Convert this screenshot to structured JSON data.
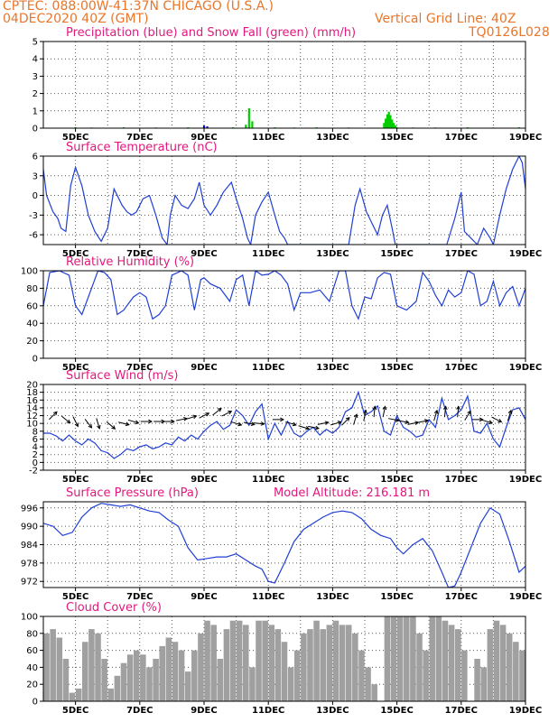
{
  "header": {
    "station": "CPTEC:   088:00W-41:37N   CHICAGO (U.S.A.)",
    "init": "04DEC2020 40Z (GMT)",
    "grid_note": "Vertical Grid Line: 40Z",
    "code": "TQ0126L028"
  },
  "colors": {
    "header": "#e8762c",
    "panel_title": "#e0197d",
    "precip": "#0000cc",
    "snow": "#00cc00",
    "line": "#1f3fd6",
    "bars": "#a0a0a0",
    "arrow": "#000000"
  },
  "x_ticks": [
    "5DEC",
    "7DEC",
    "9DEC",
    "11DEC",
    "13DEC",
    "15DEC",
    "17DEC",
    "19DEC"
  ],
  "chart_data": [
    {
      "id": "precip",
      "type": "bar",
      "title": "Precipitation (blue) and Snow Fall (green) (mm/h)",
      "xlim": [
        4.0,
        19.0
      ],
      "ylim": [
        0,
        5
      ],
      "yticks": [
        0,
        1,
        2,
        3,
        4,
        5
      ],
      "grid": true,
      "series": [
        {
          "name": "Precipitation",
          "color": "precip",
          "x": [
            9.0,
            9.1,
            14.8
          ],
          "values": [
            0.15,
            0.1,
            0.3
          ]
        },
        {
          "name": "Snow Fall",
          "color": "snow",
          "x": [
            5.0,
            5.5,
            6.5,
            7.5,
            8.5,
            9.9,
            10.3,
            10.4,
            10.5,
            11.2,
            11.8,
            12.5,
            13.5,
            14.6,
            14.65,
            14.7,
            14.75,
            14.8,
            14.85,
            14.9,
            14.95,
            15.0,
            15.5,
            16.2,
            17.2,
            18.0,
            18.8
          ],
          "values": [
            0.05,
            0.04,
            0.05,
            0.04,
            0.05,
            0.05,
            0.2,
            1.15,
            0.4,
            0.05,
            0.04,
            0.05,
            0.04,
            0.3,
            0.55,
            0.8,
            0.95,
            0.75,
            0.5,
            0.3,
            0.15,
            0.05,
            0.04,
            0.04,
            0.05,
            0.04,
            0.05
          ]
        }
      ]
    },
    {
      "id": "temperature",
      "type": "line",
      "title": "Surface Temperature (nC)",
      "xlim": [
        4.0,
        19.0
      ],
      "ylim": [
        -7.5,
        6
      ],
      "yticks": [
        -6,
        -3,
        0,
        3,
        6
      ],
      "grid": true,
      "series": [
        {
          "name": "Temperature",
          "x": [
            4.0,
            4.1,
            4.3,
            4.45,
            4.55,
            4.7,
            4.85,
            5.0,
            5.2,
            5.4,
            5.6,
            5.8,
            6.0,
            6.2,
            6.45,
            6.6,
            6.75,
            6.9,
            7.1,
            7.3,
            7.5,
            7.7,
            7.85,
            7.95,
            8.1,
            8.3,
            8.5,
            8.7,
            8.85,
            9.0,
            9.2,
            9.4,
            9.6,
            9.85,
            10.0,
            10.2,
            10.35,
            10.45,
            10.6,
            10.8,
            11.0,
            11.2,
            11.35,
            11.5,
            11.6,
            13.5,
            13.7,
            13.85,
            14.05,
            14.2,
            14.4,
            14.55,
            14.7,
            14.85,
            14.95,
            16.55,
            16.8,
            17.0,
            17.1,
            17.2,
            17.5,
            17.7,
            17.9,
            18.0,
            18.2,
            18.4,
            18.6,
            18.8,
            18.9,
            19.0
          ],
          "values": [
            4.0,
            0.0,
            -2.5,
            -3.5,
            -5.0,
            -5.5,
            1.5,
            4.3,
            1.5,
            -3.0,
            -5.5,
            -7.0,
            -5.0,
            1.0,
            -1.5,
            -2.5,
            -3.0,
            -2.5,
            -0.5,
            0.0,
            -3.0,
            -6.5,
            -7.5,
            -3.0,
            0.0,
            -1.5,
            -2.0,
            -0.5,
            2.0,
            -1.5,
            -3.0,
            -1.5,
            0.5,
            2.0,
            -0.5,
            -3.5,
            -6.5,
            -7.5,
            -3.0,
            -1.0,
            0.5,
            -3.0,
            -5.5,
            -6.5,
            -7.5,
            -7.5,
            -1.5,
            1.0,
            -2.5,
            -4.0,
            -6.0,
            -3.0,
            -1.5,
            -5.0,
            -7.5,
            -7.5,
            -3.5,
            0.5,
            -5.5,
            -6.0,
            -7.5,
            -5.0,
            -6.5,
            -7.5,
            -3.0,
            1.0,
            4.0,
            6.0,
            5.0,
            1.0
          ]
        }
      ]
    },
    {
      "id": "humidity",
      "type": "line",
      "title": "Relative Humidity (%)",
      "xlim": [
        4.0,
        19.0
      ],
      "ylim": [
        0,
        100
      ],
      "yticks": [
        0,
        20,
        40,
        60,
        80,
        100
      ],
      "grid": true,
      "series": [
        {
          "name": "Relative Humidity",
          "x": [
            4.0,
            4.2,
            4.5,
            4.8,
            5.0,
            5.2,
            5.5,
            5.7,
            5.9,
            6.1,
            6.3,
            6.5,
            6.8,
            7.0,
            7.2,
            7.4,
            7.6,
            7.8,
            8.0,
            8.3,
            8.5,
            8.7,
            8.9,
            9.0,
            9.2,
            9.5,
            9.8,
            10.0,
            10.2,
            10.4,
            10.6,
            10.8,
            11.0,
            11.2,
            11.4,
            11.6,
            11.8,
            12.0,
            12.3,
            12.6,
            12.9,
            13.2,
            13.4,
            13.6,
            13.8,
            14.0,
            14.2,
            14.4,
            14.6,
            14.8,
            15.0,
            15.3,
            15.6,
            15.8,
            16.0,
            16.2,
            16.4,
            16.6,
            16.8,
            17.0,
            17.2,
            17.4,
            17.6,
            17.8,
            18.0,
            18.2,
            18.4,
            18.6,
            18.8,
            19.0
          ],
          "values": [
            60,
            98,
            100,
            95,
            60,
            50,
            80,
            100,
            98,
            90,
            50,
            55,
            70,
            75,
            70,
            45,
            50,
            60,
            95,
            100,
            95,
            55,
            90,
            92,
            85,
            80,
            65,
            90,
            95,
            60,
            100,
            95,
            96,
            100,
            95,
            85,
            55,
            75,
            75,
            78,
            65,
            100,
            100,
            60,
            45,
            70,
            68,
            92,
            98,
            96,
            60,
            55,
            65,
            98,
            88,
            72,
            60,
            78,
            70,
            75,
            100,
            96,
            60,
            65,
            88,
            60,
            75,
            82,
            60,
            80
          ]
        }
      ]
    },
    {
      "id": "wind",
      "type": "line",
      "title": "Surface Wind (m/s)",
      "xlim": [
        4.0,
        19.0
      ],
      "ylim": [
        -2,
        20
      ],
      "yticks": [
        -2,
        0,
        2,
        4,
        6,
        8,
        10,
        12,
        14,
        16,
        18,
        20
      ],
      "grid": true,
      "series": [
        {
          "name": "Wind speed",
          "x": [
            4.0,
            4.2,
            4.4,
            4.6,
            4.8,
            5.0,
            5.2,
            5.4,
            5.6,
            5.8,
            6.0,
            6.2,
            6.4,
            6.6,
            6.8,
            7.0,
            7.2,
            7.4,
            7.6,
            7.8,
            8.0,
            8.2,
            8.4,
            8.6,
            8.8,
            9.0,
            9.2,
            9.4,
            9.6,
            9.8,
            10.0,
            10.2,
            10.4,
            10.6,
            10.8,
            11.0,
            11.2,
            11.4,
            11.6,
            11.8,
            12.0,
            12.2,
            12.4,
            12.6,
            12.8,
            13.0,
            13.2,
            13.4,
            13.6,
            13.8,
            14.0,
            14.2,
            14.4,
            14.6,
            14.8,
            15.0,
            15.2,
            15.4,
            15.6,
            15.8,
            16.0,
            16.2,
            16.4,
            16.6,
            16.8,
            17.0,
            17.2,
            17.4,
            17.6,
            17.8,
            18.0,
            18.2,
            18.4,
            18.6,
            18.8,
            19.0
          ],
          "values": [
            7.5,
            7.5,
            6.8,
            5.5,
            7.0,
            5.5,
            4.5,
            6.0,
            5.0,
            3.0,
            2.5,
            1.0,
            2.0,
            3.5,
            3.0,
            4.0,
            4.5,
            3.5,
            4.0,
            5.0,
            4.5,
            6.5,
            5.5,
            7.0,
            6.0,
            8.0,
            9.5,
            10.5,
            8.5,
            9.5,
            13.5,
            12.0,
            9.5,
            13.0,
            15.0,
            6.0,
            10.0,
            7.0,
            10.5,
            7.5,
            6.5,
            8.0,
            9.0,
            7.0,
            8.5,
            7.5,
            9.0,
            13.0,
            14.0,
            18.0,
            12.0,
            13.0,
            14.5,
            8.0,
            7.0,
            12.0,
            9.0,
            8.0,
            6.5,
            7.0,
            11.0,
            9.0,
            16.5,
            11.0,
            12.0,
            13.5,
            17.0,
            8.0,
            7.5,
            10.0,
            6.0,
            4.0,
            9.0,
            13.5,
            14.0,
            11.0
          ]
        },
        {
          "name": "Wind direction",
          "type": "vectors",
          "x": [
            4.3,
            4.7,
            5.0,
            5.4,
            5.7,
            6.1,
            6.5,
            6.8,
            7.2,
            7.6,
            7.9,
            8.3,
            8.6,
            9.0,
            9.4,
            9.7,
            10.0,
            10.4,
            10.7,
            11.3,
            11.7,
            12.1,
            12.4,
            12.7,
            13.1,
            13.4,
            13.7,
            14.0,
            14.3,
            14.6,
            14.9,
            15.2,
            15.5,
            15.8,
            16.2,
            16.5,
            16.9,
            17.2,
            17.5,
            17.8,
            18.1,
            18.5
          ],
          "y": [
            12,
            11,
            10.5,
            10,
            10,
            9.5,
            10,
            10.5,
            10.5,
            10.5,
            10.5,
            11,
            11.5,
            12,
            13,
            12.5,
            10,
            10,
            10,
            11,
            10,
            9,
            9,
            10,
            10,
            10.5,
            11,
            12,
            13,
            13,
            11,
            10.5,
            10,
            10.5,
            12,
            13,
            13,
            12,
            11,
            10.5,
            11,
            12
          ],
          "u": [
            1,
            1,
            0.5,
            0.7,
            0.3,
            0.6,
            0.8,
            1,
            1,
            1,
            1,
            1,
            1,
            1,
            1,
            1,
            1,
            1,
            1,
            1,
            1,
            1,
            1,
            1,
            1,
            0.5,
            0.3,
            0.2,
            0.1,
            0.2,
            1,
            1,
            1,
            1,
            0.3,
            0.1,
            0.1,
            0.5,
            1,
            1,
            1,
            0.3
          ],
          "v": [
            1,
            -0.8,
            -1,
            -0.9,
            -1,
            -0.5,
            -0.2,
            -0.3,
            0,
            0,
            0,
            0.2,
            0.3,
            0.5,
            0.8,
            0.5,
            -0.3,
            -0.2,
            -0.1,
            0,
            -0.3,
            -0.3,
            -0.2,
            0.2,
            0.3,
            0.5,
            1,
            1,
            1,
            1,
            -0.2,
            -0.2,
            0.2,
            0.2,
            1,
            1,
            1,
            0.8,
            0,
            -0.3,
            -0.5,
            1
          ]
        }
      ]
    },
    {
      "id": "pressure",
      "type": "line",
      "title": "Surface Pressure (hPa)",
      "subtitle": "Model Altitude: 216.181 m",
      "xlim": [
        4.0,
        19.0
      ],
      "ylim": [
        970,
        998
      ],
      "yticks": [
        972,
        978,
        984,
        990,
        996
      ],
      "grid": true,
      "series": [
        {
          "name": "Surface Pressure",
          "x": [
            4.0,
            4.3,
            4.6,
            4.9,
            5.2,
            5.5,
            5.8,
            6.1,
            6.4,
            6.7,
            7.0,
            7.3,
            7.6,
            7.9,
            8.2,
            8.5,
            8.8,
            9.1,
            9.4,
            9.7,
            10.0,
            10.3,
            10.6,
            10.8,
            11.0,
            11.2,
            11.5,
            11.8,
            12.1,
            12.4,
            12.7,
            13.0,
            13.3,
            13.6,
            13.9,
            14.2,
            14.5,
            14.8,
            15.0,
            15.2,
            15.5,
            15.8,
            16.1,
            16.4,
            16.6,
            16.8,
            17.0,
            17.3,
            17.6,
            17.9,
            18.2,
            18.5,
            18.8,
            19.0
          ],
          "values": [
            991,
            990,
            987,
            988,
            993,
            996,
            997.5,
            997,
            996.5,
            997,
            996,
            995,
            994.5,
            992,
            990,
            983,
            979,
            979.5,
            980,
            980,
            981,
            979,
            977,
            976,
            972,
            971.5,
            978,
            985,
            989,
            991,
            993,
            994.5,
            995,
            994.5,
            992.5,
            989,
            987,
            986,
            983,
            981,
            984,
            986,
            982,
            975,
            970,
            970.5,
            975,
            983,
            991,
            996,
            994,
            985,
            975,
            977
          ]
        }
      ]
    },
    {
      "id": "cloud",
      "type": "bar",
      "title": "Cloud Cover (%)",
      "xlim": [
        4.0,
        19.0
      ],
      "ylim": [
        0,
        100
      ],
      "yticks": [
        0,
        20,
        40,
        60,
        80,
        100
      ],
      "grid": true,
      "series": [
        {
          "name": "Cloud Cover",
          "x": [
            4.1,
            4.3,
            4.5,
            4.7,
            4.9,
            5.1,
            5.3,
            5.5,
            5.7,
            5.9,
            6.1,
            6.3,
            6.5,
            6.7,
            6.9,
            7.1,
            7.3,
            7.5,
            7.7,
            7.9,
            8.1,
            8.3,
            8.5,
            8.7,
            8.9,
            9.1,
            9.3,
            9.5,
            9.7,
            9.9,
            10.1,
            10.3,
            10.5,
            10.7,
            10.9,
            11.1,
            11.3,
            11.5,
            11.7,
            11.9,
            12.1,
            12.3,
            12.5,
            12.7,
            12.9,
            13.1,
            13.3,
            13.5,
            13.7,
            13.9,
            14.1,
            14.3,
            14.5,
            14.7,
            14.9,
            15.1,
            15.3,
            15.5,
            15.7,
            15.9,
            16.1,
            16.3,
            16.5,
            16.7,
            16.9,
            17.1,
            17.3,
            17.5,
            17.7,
            17.9,
            18.1,
            18.3,
            18.5,
            18.7,
            18.9
          ],
          "values": [
            80,
            85,
            75,
            50,
            10,
            15,
            70,
            85,
            80,
            50,
            15,
            30,
            45,
            55,
            60,
            55,
            40,
            50,
            65,
            75,
            70,
            60,
            35,
            60,
            80,
            95,
            90,
            50,
            85,
            95,
            95,
            90,
            40,
            95,
            95,
            90,
            85,
            70,
            40,
            60,
            80,
            85,
            95,
            85,
            90,
            95,
            90,
            90,
            80,
            60,
            40,
            20,
            0,
            100,
            100,
            100,
            100,
            100,
            80,
            60,
            100,
            100,
            95,
            90,
            85,
            60,
            0,
            50,
            40,
            85,
            95,
            90,
            80,
            70,
            60
          ]
        }
      ]
    }
  ]
}
